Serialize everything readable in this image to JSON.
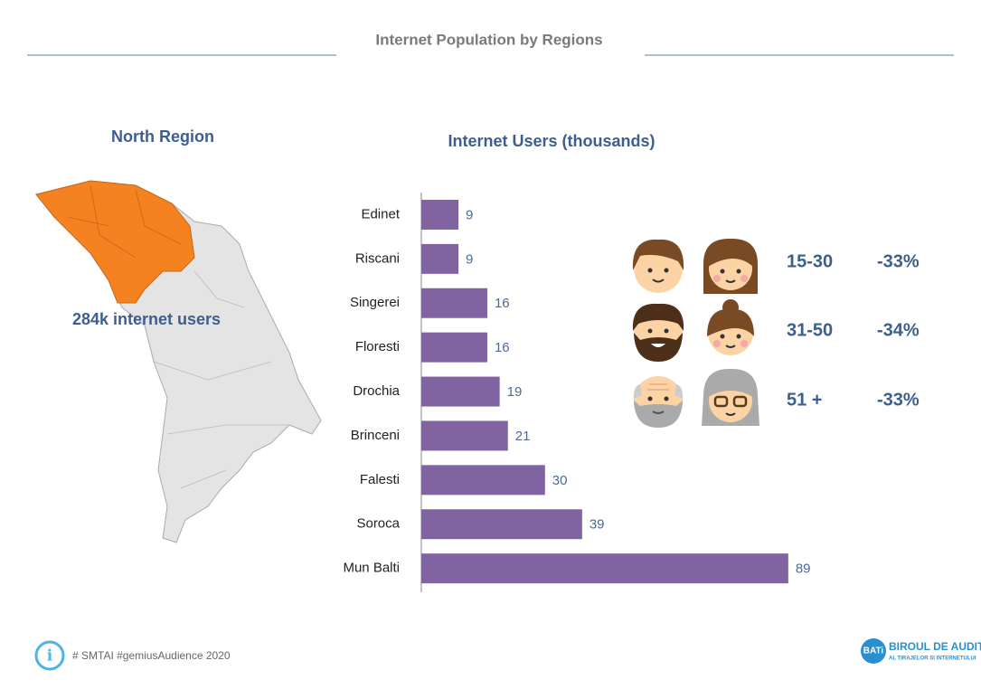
{
  "title": "Internet Population by Regions",
  "region": {
    "name": "North Region",
    "users_label": "284k internet users"
  },
  "chart_data": {
    "type": "bar",
    "orientation": "horizontal",
    "title": "Internet Users (thousands)",
    "categories": [
      "Edinet",
      "Riscani",
      "Singerei",
      "Floresti",
      "Drochia",
      "Brinceni",
      "Falesti",
      "Soroca",
      "Mun Balti"
    ],
    "values": [
      9,
      9,
      16,
      16,
      19,
      21,
      30,
      39,
      89
    ],
    "color": "#8064a2",
    "xlim": [
      0,
      100
    ]
  },
  "age_groups": [
    {
      "label": "15-30",
      "change": "-33%"
    },
    {
      "label": "31-50",
      "change": "-34%"
    },
    {
      "label": "51 +",
      "change": "-33%"
    }
  ],
  "footer": {
    "source": "# SMTAI #gemiusAudience 2020",
    "logo_badge": "BATi",
    "logo_line1": "BIROUL DE AUDIT",
    "logo_line2": "AL TIRAJELOR SI INTERNETULUI"
  }
}
